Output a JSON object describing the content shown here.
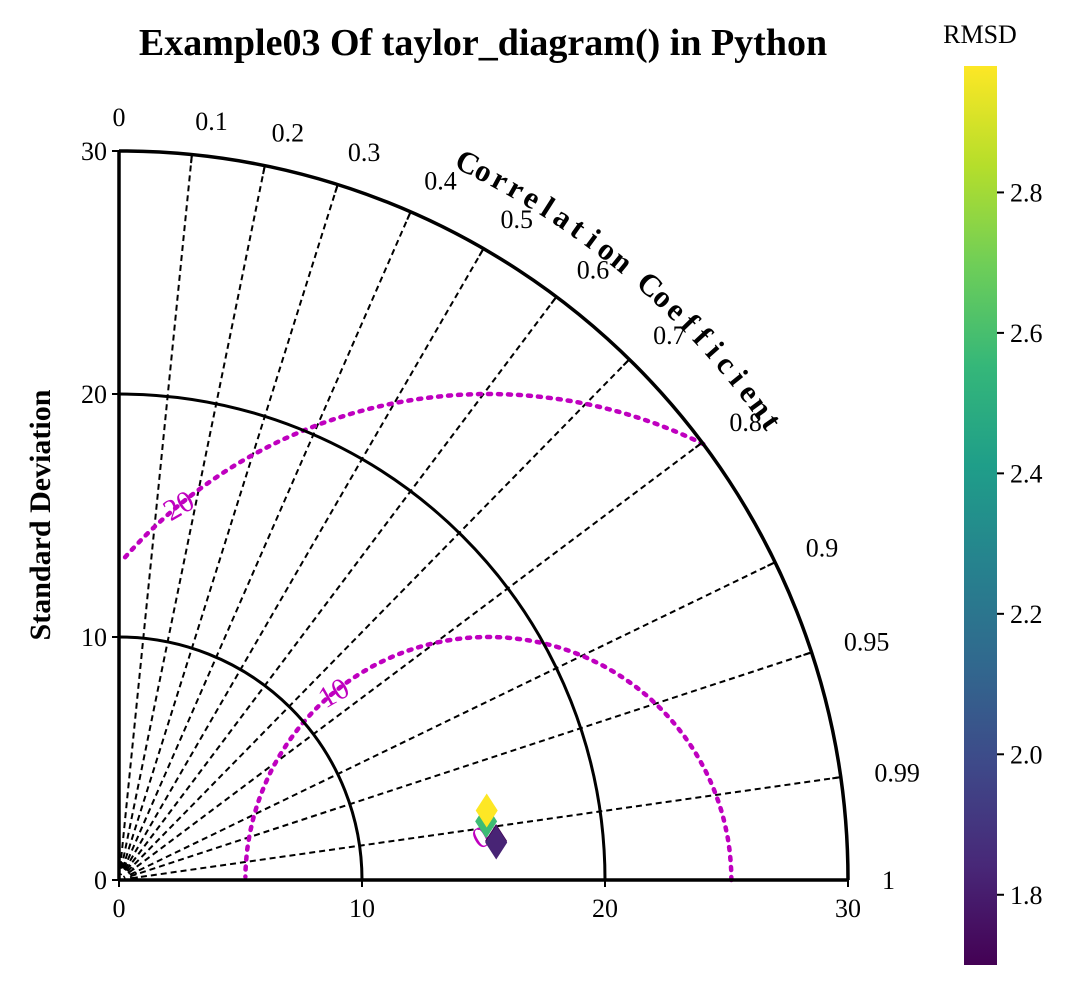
{
  "chart_data": {
    "type": "taylor_diagram",
    "title": "Example03 Of taylor_diagram() in Python",
    "ylabel": "Standard Deviation",
    "xticks": [
      "0",
      "10",
      "20",
      "30"
    ],
    "yticks": [
      "0",
      "10",
      "20",
      "30"
    ],
    "std_range": [
      0,
      30
    ],
    "std_arcs": [
      10,
      20,
      30
    ],
    "correlation_title": "Correlation Coefficient",
    "correlation_ticks": [
      "0",
      "0.1",
      "0.2",
      "0.3",
      "0.4",
      "0.5",
      "0.6",
      "0.7",
      "0.8",
      "0.9",
      "0.95",
      "0.99",
      "1"
    ],
    "correlation_values": [
      0,
      0.1,
      0.2,
      0.3,
      0.4,
      0.5,
      0.6,
      0.7,
      0.8,
      0.9,
      0.95,
      0.99,
      1
    ],
    "rmsd_contour_values": [
      10,
      20
    ],
    "rmsd_contour_labels": [
      "10",
      "20"
    ],
    "rmsd_extra_label": "0",
    "rmsd_contour_color": "#bf00bf",
    "reference_std": 15.2,
    "markers": [
      {
        "std": 15.6,
        "correlation": 0.9947,
        "rmsd": 1.72,
        "color": "#440154"
      },
      {
        "std": 15.6,
        "correlation": 0.9951,
        "rmsd": 1.78,
        "color": "#482475"
      },
      {
        "std": 15.3,
        "correlation": 0.9875,
        "rmsd": 2.62,
        "color": "#3dbc74"
      },
      {
        "std": 15.4,
        "correlation": 0.9826,
        "rmsd": 2.95,
        "color": "#fde725"
      }
    ],
    "colorbar": {
      "title": "RMSD",
      "range": [
        1.7,
        2.98
      ],
      "ticks": [
        "1.8",
        "2.0",
        "2.2",
        "2.4",
        "2.6",
        "2.8"
      ],
      "tick_values": [
        1.8,
        2.0,
        2.2,
        2.4,
        2.6,
        2.8
      ],
      "colormap": "viridis",
      "stops": [
        "#440154",
        "#482878",
        "#3e4989",
        "#31688e",
        "#26828e",
        "#1f9e89",
        "#35b779",
        "#6ece58",
        "#b5de2b",
        "#fde725"
      ]
    }
  }
}
